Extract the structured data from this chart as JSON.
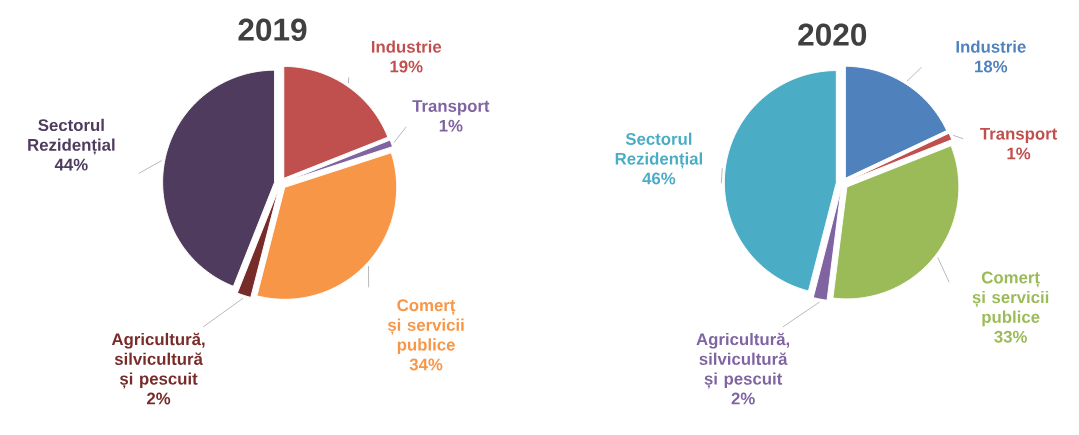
{
  "chart_data": [
    {
      "type": "pie",
      "title": "2019",
      "categories": [
        "Industrie",
        "Transport",
        "Comerț și servicii publice",
        "Agricultură, silvicultură și pescuit",
        "Sectorul Rezidențial"
      ],
      "values": [
        19,
        1,
        34,
        2,
        44
      ],
      "value_labels": [
        "19%",
        "1%",
        "34%",
        "2%",
        "44%"
      ],
      "colors": [
        "#c0504d",
        "#8064a2",
        "#f79646",
        "#772c2a",
        "#4f3b5e"
      ]
    },
    {
      "type": "pie",
      "title": "2020",
      "categories": [
        "Industrie",
        "Transport",
        "Comerț și servicii publice",
        "Agricultură, silvicultură și pescuit",
        "Sectorul Rezidențial"
      ],
      "values": [
        18,
        1,
        33,
        2,
        46
      ],
      "value_labels": [
        "18%",
        "1%",
        "33%",
        "2%",
        "46%"
      ],
      "colors": [
        "#4f81bd",
        "#c0504d",
        "#9bbb59",
        "#8064a2",
        "#4bacc6"
      ]
    }
  ]
}
